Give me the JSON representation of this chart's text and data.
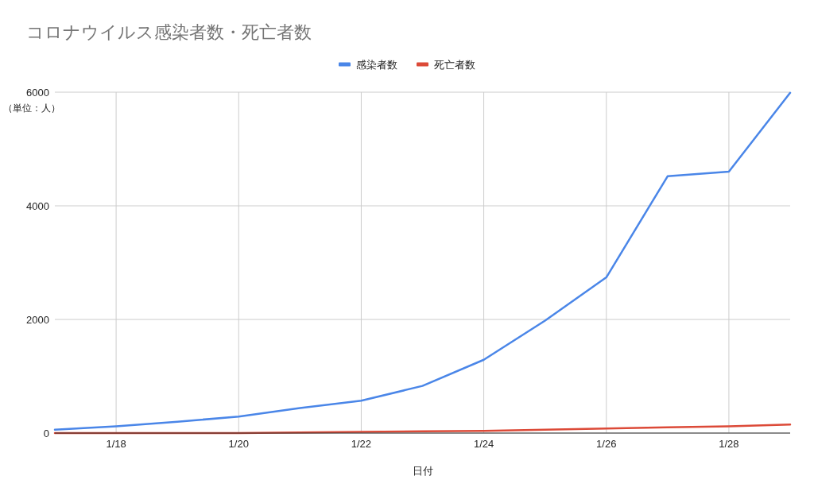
{
  "chart_data": {
    "type": "line",
    "title": "コロナウイルス感染者数・死亡者数",
    "xlabel": "日付",
    "annotations": [
      "（単位：人）"
    ],
    "x": [
      "--01-17",
      "--01-18",
      "--01-19",
      "--01-20",
      "--01-21",
      "--01-22",
      "--01-23",
      "--01-24",
      "--01-25",
      "--01-26",
      "--01-27",
      "--01-28",
      "--01-29"
    ],
    "series": [
      {
        "name": "感染者数",
        "color": "#4a86e8",
        "values": [
          60,
          120,
          200,
          290,
          440,
          570,
          830,
          1290,
          1980,
          2740,
          4520,
          4600,
          5990
        ]
      },
      {
        "name": "死亡者数",
        "color": "#dc4a38",
        "values": [
          0,
          0,
          0,
          0,
          10,
          20,
          30,
          40,
          60,
          80,
          100,
          120,
          150
        ]
      }
    ],
    "xlim": [
      "--01-17",
      "--01-29"
    ],
    "xticks": [
      {
        "value": "--01-18",
        "label": "1/18"
      },
      {
        "value": "--01-20",
        "label": "1/20"
      },
      {
        "value": "--01-22",
        "label": "1/22"
      },
      {
        "value": "--01-24",
        "label": "1/24"
      },
      {
        "value": "--01-26",
        "label": "1/26"
      },
      {
        "value": "--01-28",
        "label": "1/28"
      }
    ],
    "ylim": [
      0,
      6000
    ],
    "yticks": [
      0,
      2000,
      4000,
      6000
    ],
    "grid": true,
    "legend": "top"
  }
}
